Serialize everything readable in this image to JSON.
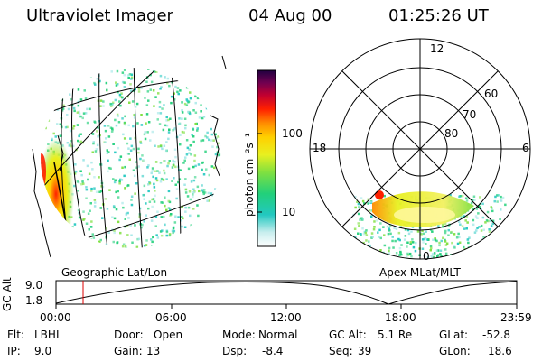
{
  "header": {
    "instrument": "Ultraviolet Imager",
    "date": "04 Aug 00",
    "time": "01:25:26 UT"
  },
  "geo_panel": {
    "label": "Geographic Lat/Lon"
  },
  "polar_panel": {
    "label": "Apex MLat/MLT",
    "mlt_labels": {
      "top": "12",
      "left": "18",
      "right": "6",
      "bottom": "0"
    },
    "lat_labels": [
      "60",
      "70",
      "80"
    ]
  },
  "colorbar": {
    "unit_label": "photon cm⁻²s⁻¹",
    "tick_labels": [
      "100",
      "10"
    ],
    "scale": "log",
    "colors": [
      "#ffffff",
      "#9fe6e6",
      "#22c8c0",
      "#22d07a",
      "#80e040",
      "#e8f020",
      "#ffd000",
      "#ff8c00",
      "#ff2000",
      "#c00030",
      "#700050",
      "#200040"
    ]
  },
  "altitude_plot": {
    "ylabel": "GC Alt",
    "ytick_labels": [
      "9.0",
      "1.8"
    ],
    "xtick_labels": [
      "00:00",
      "06:00",
      "12:00",
      "18:00",
      "23:59"
    ],
    "marker_color": "#dd0000"
  },
  "info": {
    "rows": [
      [
        {
          "k": "Flt:",
          "v": "LBHL"
        },
        {
          "k": "Door:",
          "v": "Open"
        },
        {
          "k": "Mode:",
          "v": "Normal"
        },
        {
          "k": "GC Alt:",
          "v": "5.1 Re"
        },
        {
          "k": "GLat:",
          "v": "-52.8"
        }
      ],
      [
        {
          "k": "IP:",
          "v": "9.0"
        },
        {
          "k": "Gain:",
          "v": "13"
        },
        {
          "k": "Dsp:",
          "v": "-8.4"
        },
        {
          "k": "Seq:",
          "v": "39"
        },
        {
          "k": "GLon:",
          "v": "18.6"
        }
      ]
    ]
  }
}
